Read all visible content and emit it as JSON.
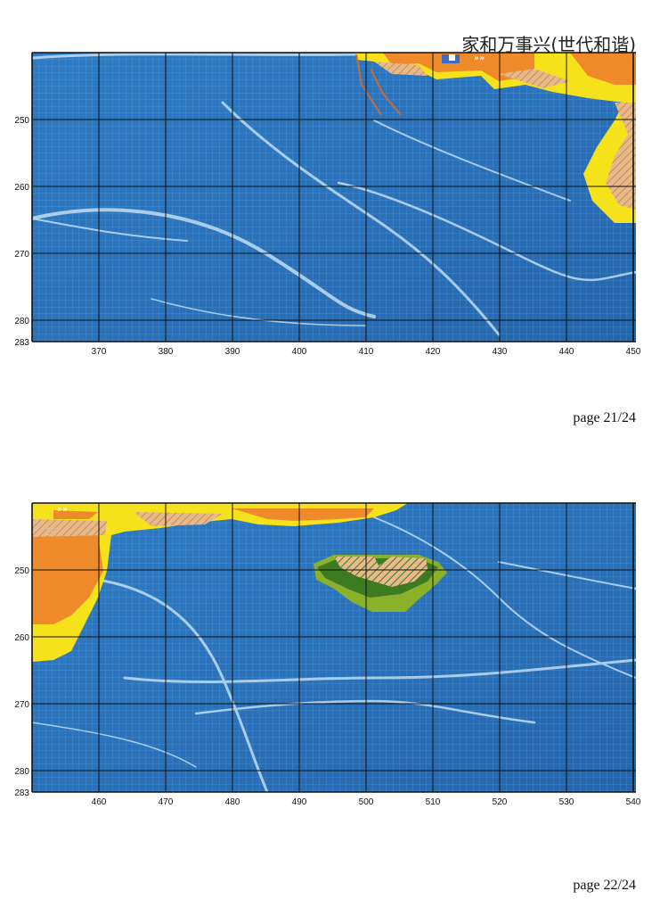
{
  "document": {
    "title": "家和万事兴(世代和谐)"
  },
  "pages": [
    {
      "page_label": "page 21/24",
      "x_ticks": [
        "370",
        "380",
        "390",
        "400",
        "410",
        "420",
        "430",
        "440",
        "450"
      ],
      "y_ticks": [
        "250",
        "260",
        "270",
        "280",
        "283"
      ]
    },
    {
      "page_label": "page 22/24",
      "x_ticks": [
        "460",
        "470",
        "480",
        "490",
        "500",
        "510",
        "520",
        "530",
        "540"
      ],
      "y_ticks": [
        "250",
        "260",
        "270",
        "280",
        "283"
      ],
      "symbol_label": "18"
    }
  ],
  "colors": {
    "water": "#2c79c2",
    "water_dark": "#1f5fa3",
    "highlight": "#bfe0f7",
    "yellow": "#f6e21a",
    "orange": "#ef8a2a",
    "tan": "#e8b98a",
    "green_dark": "#3d7b22",
    "green_light": "#8bb02a",
    "grid_major": "#111111",
    "grid_minor": "#7fb0dc"
  }
}
